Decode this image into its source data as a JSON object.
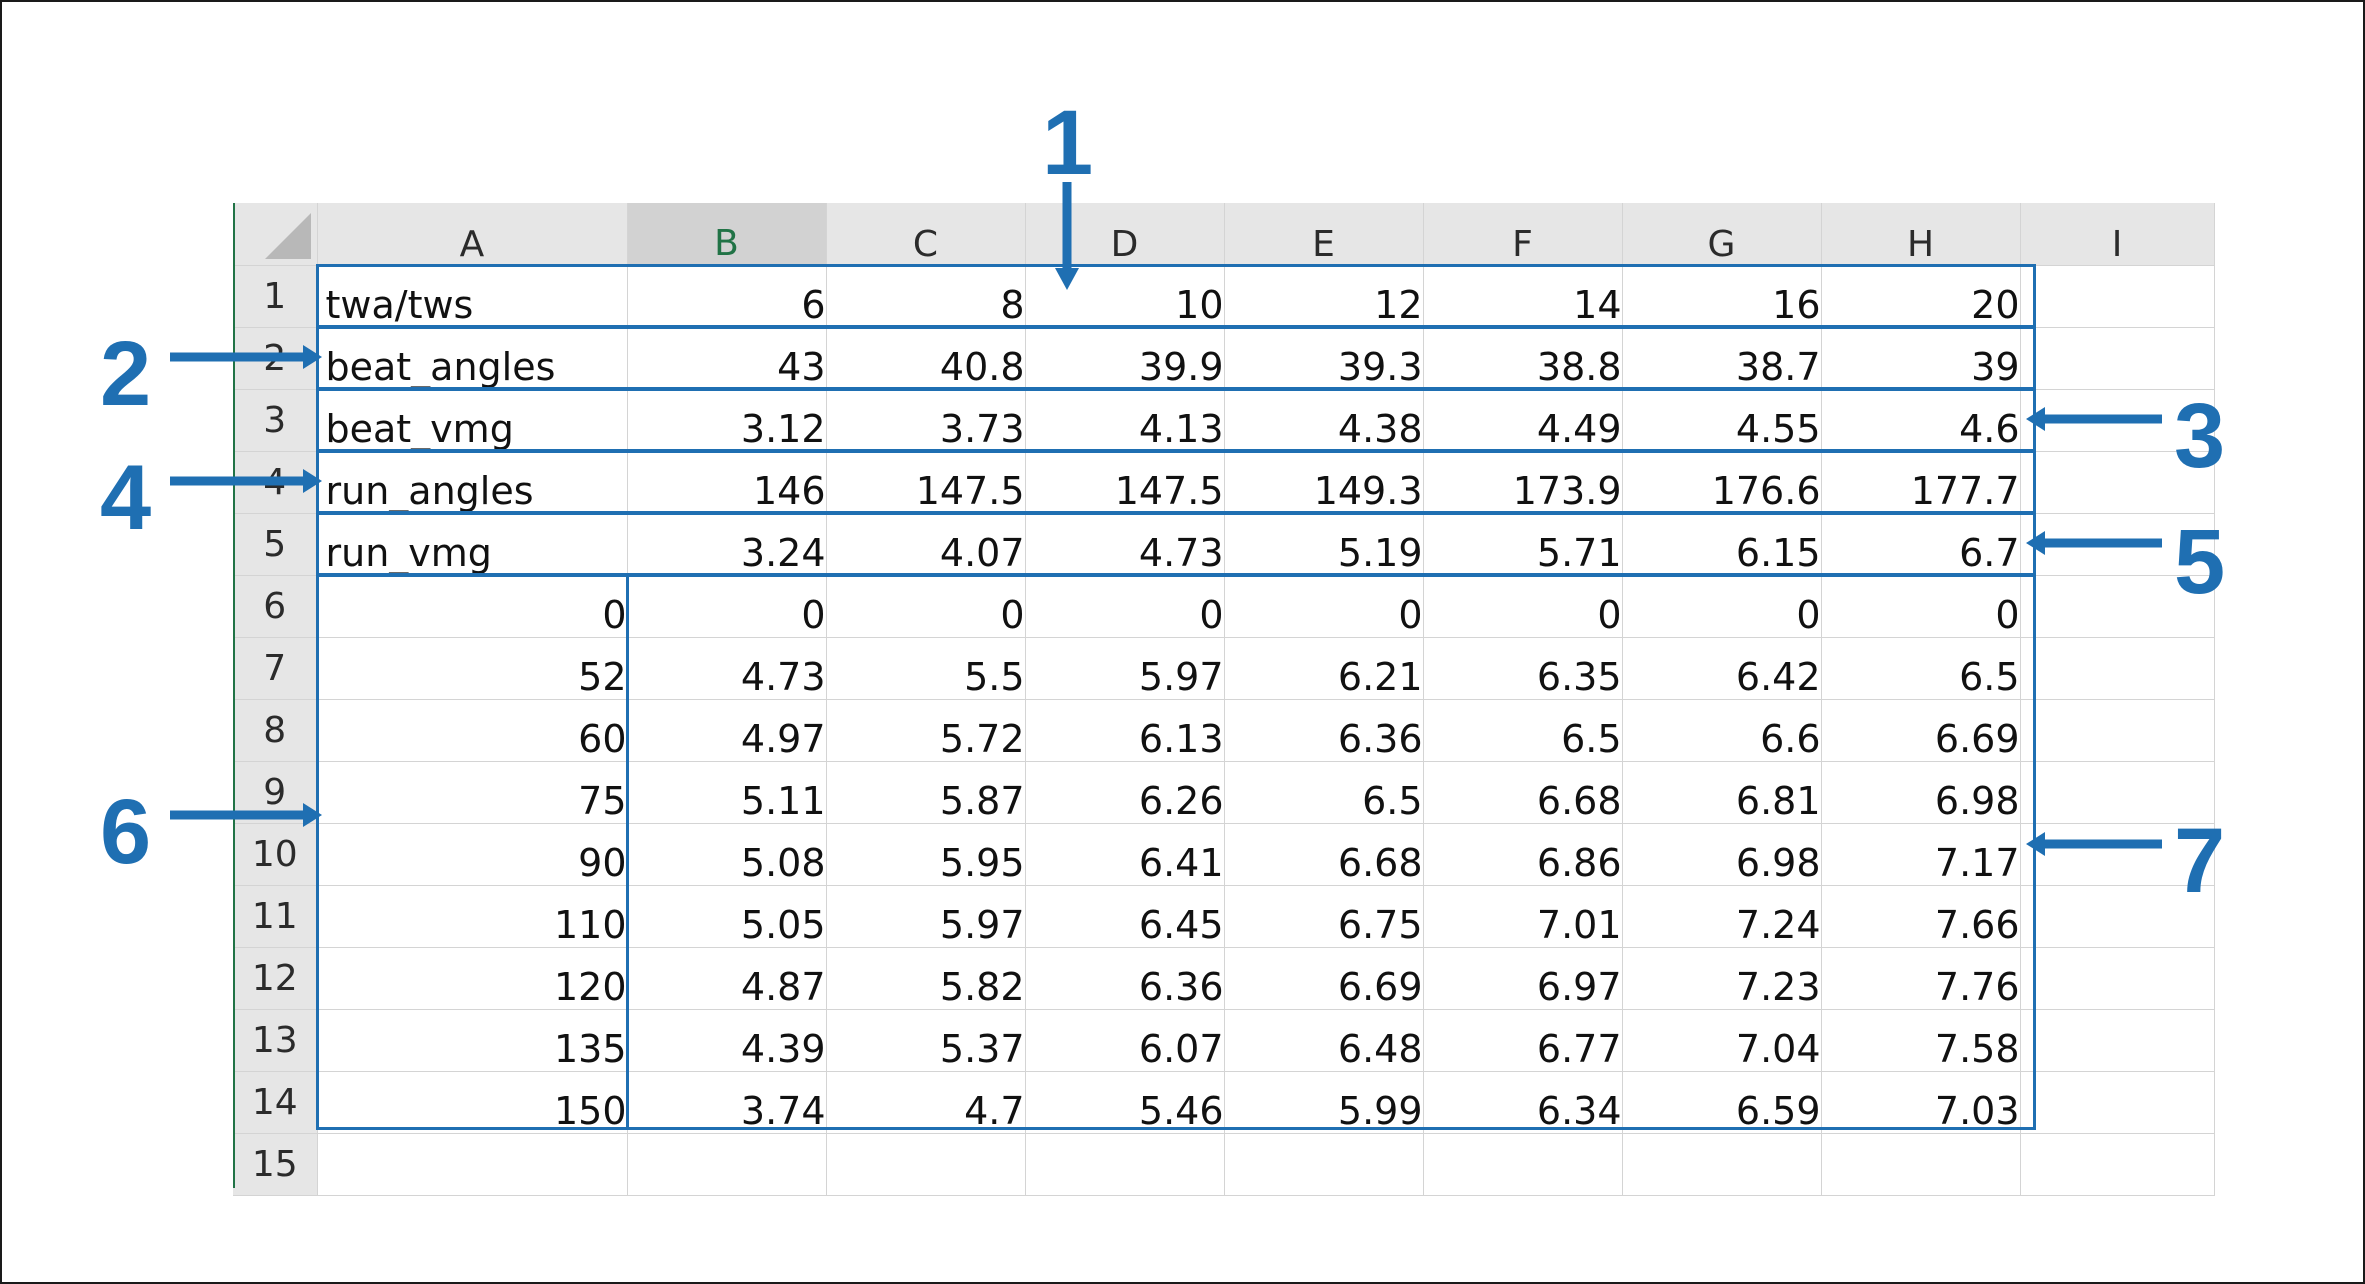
{
  "sheet": {
    "column_headers": [
      "A",
      "B",
      "C",
      "D",
      "E",
      "F",
      "G",
      "H",
      "I"
    ],
    "selected_column": "B",
    "row_numbers": [
      "1",
      "2",
      "3",
      "4",
      "5",
      "6",
      "7",
      "8",
      "9",
      "10",
      "11",
      "12",
      "13",
      "14",
      "15"
    ],
    "rows": [
      [
        "twa/tws",
        "6",
        "8",
        "10",
        "12",
        "14",
        "16",
        "20",
        ""
      ],
      [
        "beat_angles",
        "43",
        "40.8",
        "39.9",
        "39.3",
        "38.8",
        "38.7",
        "39",
        ""
      ],
      [
        "beat_vmg",
        "3.12",
        "3.73",
        "4.13",
        "4.38",
        "4.49",
        "4.55",
        "4.6",
        ""
      ],
      [
        "run_angles",
        "146",
        "147.5",
        "147.5",
        "149.3",
        "173.9",
        "176.6",
        "177.7",
        ""
      ],
      [
        "run_vmg",
        "3.24",
        "4.07",
        "4.73",
        "5.19",
        "5.71",
        "6.15",
        "6.7",
        ""
      ],
      [
        "0",
        "0",
        "0",
        "0",
        "0",
        "0",
        "0",
        "0",
        ""
      ],
      [
        "52",
        "4.73",
        "5.5",
        "5.97",
        "6.21",
        "6.35",
        "6.42",
        "6.5",
        ""
      ],
      [
        "60",
        "4.97",
        "5.72",
        "6.13",
        "6.36",
        "6.5",
        "6.6",
        "6.69",
        ""
      ],
      [
        "75",
        "5.11",
        "5.87",
        "6.26",
        "6.5",
        "6.68",
        "6.81",
        "6.98",
        ""
      ],
      [
        "90",
        "5.08",
        "5.95",
        "6.41",
        "6.68",
        "6.86",
        "6.98",
        "7.17",
        ""
      ],
      [
        "110",
        "5.05",
        "5.97",
        "6.45",
        "6.75",
        "7.01",
        "7.24",
        "7.66",
        ""
      ],
      [
        "120",
        "4.87",
        "5.82",
        "6.36",
        "6.69",
        "6.97",
        "7.23",
        "7.76",
        ""
      ],
      [
        "135",
        "4.39",
        "5.37",
        "6.07",
        "6.48",
        "6.77",
        "7.04",
        "7.58",
        ""
      ],
      [
        "150",
        "3.74",
        "4.7",
        "5.46",
        "5.99",
        "6.34",
        "6.59",
        "7.03",
        ""
      ],
      [
        "",
        "",
        "",
        "",
        "",
        "",
        "",
        "",
        ""
      ]
    ]
  },
  "callouts": [
    "1",
    "2",
    "3",
    "4",
    "5",
    "6",
    "7"
  ],
  "colors": {
    "accent": "#1f6fb2",
    "header_bg": "#e6e6e6",
    "selected_header_text": "#217346",
    "gridline": "#d4d4d4"
  }
}
